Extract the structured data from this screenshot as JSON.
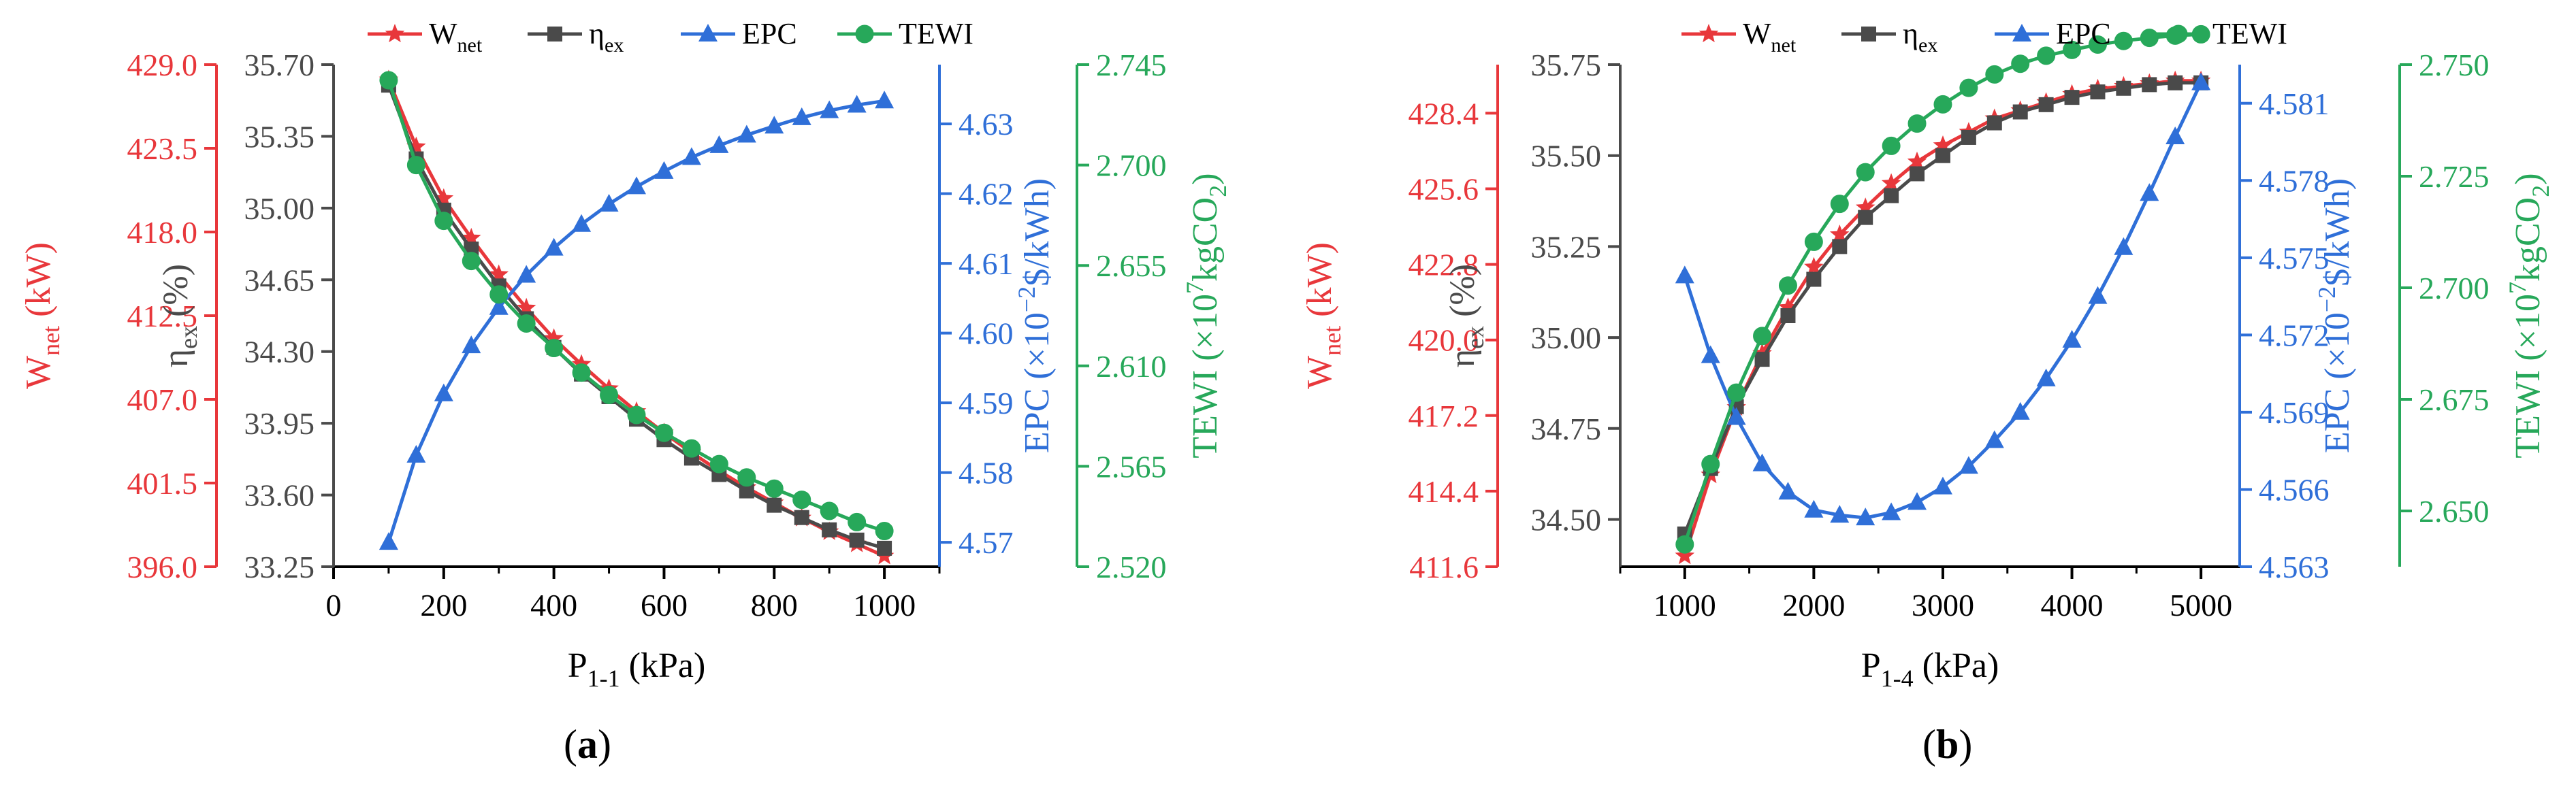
{
  "colors": {
    "wnet": "#e8373b",
    "eta": "#4a4a4a",
    "epc": "#2f6fd8",
    "tewi": "#27a85a",
    "axis": "#000000"
  },
  "panels": [
    {
      "label_open": "(",
      "label_letter": "a",
      "label_close": ")"
    },
    {
      "label_open": "(",
      "label_letter": "b",
      "label_close": ")"
    }
  ],
  "chart_data": [
    {
      "type": "line",
      "x": [
        100,
        150,
        200,
        250,
        300,
        350,
        400,
        450,
        500,
        550,
        600,
        650,
        700,
        750,
        800,
        850,
        900,
        950,
        1000
      ],
      "xlim": [
        0,
        1100
      ],
      "x_ticks": [
        "0",
        "200",
        "400",
        "600",
        "800",
        "1000"
      ],
      "xlabel_main": "P",
      "xlabel_sub": "1-1",
      "xlabel_tail": " (kPa)",
      "legend": [
        "W",
        "η",
        "EPC",
        "TEWI"
      ],
      "legend_subs": [
        "net",
        "ex",
        "",
        ""
      ],
      "axes": [
        {
          "key": "wnet",
          "label_main": "W",
          "label_sub": "net",
          "label_tail": " (kW)",
          "ticks": [
            "396.0",
            "401.5",
            "407.0",
            "412.5",
            "418.0",
            "423.5",
            "429.0"
          ],
          "ylim": [
            396.0,
            429.0
          ]
        },
        {
          "key": "eta",
          "label_main": "η",
          "label_sub": "ex",
          "label_tail": " (%)",
          "ticks": [
            "33.25",
            "33.60",
            "33.95",
            "34.30",
            "34.65",
            "35.00",
            "35.35",
            "35.70"
          ],
          "ylim": [
            33.25,
            35.7
          ]
        },
        {
          "key": "epc",
          "label_main": "EPC (×10",
          "label_sup": "−2",
          "label_tail": "$/kWh)",
          "ticks": [
            "4.57",
            "4.58",
            "4.59",
            "4.60",
            "4.61",
            "4.62",
            "4.63"
          ],
          "ylim": [
            4.5665,
            4.6385
          ]
        },
        {
          "key": "tewi",
          "label_main": "TEWI (×10",
          "label_sup": "7",
          "label_mid": "kgCO",
          "label_sub2": "2",
          "label_tail": ")",
          "ticks": [
            "2.520",
            "2.565",
            "2.610",
            "2.655",
            "2.700",
            "2.745"
          ],
          "ylim": [
            2.52,
            2.745
          ]
        }
      ],
      "series": [
        {
          "name": "Wnet",
          "axis": "wnet",
          "marker": "star",
          "values": [
            428.0,
            423.6,
            420.2,
            417.6,
            415.2,
            413.0,
            411.0,
            409.3,
            407.7,
            406.2,
            404.8,
            403.5,
            402.3,
            401.2,
            400.2,
            399.2,
            398.3,
            397.5,
            396.7
          ]
        },
        {
          "name": "ηex",
          "axis": "eta",
          "marker": "square",
          "values": [
            35.6,
            35.24,
            34.99,
            34.8,
            34.62,
            34.46,
            34.32,
            34.19,
            34.08,
            33.97,
            33.87,
            33.78,
            33.7,
            33.62,
            33.55,
            33.49,
            33.43,
            33.38,
            33.34
          ]
        },
        {
          "name": "EPC",
          "axis": "epc",
          "marker": "triangle",
          "values": [
            4.57,
            4.5825,
            4.5913,
            4.5982,
            4.6037,
            4.6083,
            4.6122,
            4.6156,
            4.6185,
            4.621,
            4.6232,
            4.6252,
            4.6269,
            4.6284,
            4.6297,
            4.6309,
            4.6319,
            4.6327,
            4.6333
          ]
        },
        {
          "name": "TEWI",
          "axis": "tewi",
          "marker": "circle",
          "values": [
            2.738,
            2.7,
            2.675,
            2.657,
            2.642,
            2.629,
            2.618,
            2.607,
            2.597,
            2.588,
            2.58,
            2.573,
            2.566,
            2.56,
            2.555,
            2.55,
            2.545,
            2.54,
            2.536
          ]
        }
      ]
    },
    {
      "type": "line",
      "x": [
        1000,
        1200,
        1400,
        1600,
        1800,
        2000,
        2200,
        2400,
        2600,
        2800,
        3000,
        3200,
        3400,
        3600,
        3800,
        4000,
        4200,
        4400,
        4600,
        4800,
        5000
      ],
      "xlim": [
        500,
        5300
      ],
      "x_ticks": [
        "1000",
        "2000",
        "3000",
        "4000",
        "5000"
      ],
      "xlabel_main": "P",
      "xlabel_sub": "1-4",
      "xlabel_tail": " (kPa)",
      "legend": [
        "W",
        "η",
        "EPC",
        "TEWI"
      ],
      "legend_subs": [
        "net",
        "ex",
        "",
        ""
      ],
      "axes": [
        {
          "key": "wnet",
          "label_main": "W",
          "label_sub": "net",
          "label_tail": " (kW)",
          "ticks": [
            "411.6",
            "414.4",
            "417.2",
            "420.0",
            "422.8",
            "425.6",
            "428.4"
          ],
          "ylim": [
            411.6,
            430.2
          ]
        },
        {
          "key": "eta",
          "label_main": "η",
          "label_sub": "ex",
          "label_tail": " (%)",
          "ticks": [
            "34.50",
            "34.75",
            "35.00",
            "35.25",
            "35.50",
            "35.75"
          ],
          "ylim": [
            34.37,
            35.75
          ]
        },
        {
          "key": "epc",
          "label_main": "EPC (×10",
          "label_sup": "−2",
          "label_tail": "$/kWh)",
          "ticks": [
            "4.563",
            "4.566",
            "4.569",
            "4.572",
            "4.575",
            "4.578",
            "4.581"
          ],
          "ylim": [
            4.563,
            4.5825
          ]
        },
        {
          "key": "tewi",
          "label_main": "TEWI (×10",
          "label_sup": "7",
          "label_mid": "kgCO",
          "label_sub2": "2",
          "label_tail": ")",
          "ticks": [
            "2.650",
            "2.675",
            "2.700",
            "2.725",
            "2.750"
          ],
          "ylim": [
            2.6375,
            2.75
          ]
        }
      ],
      "series": [
        {
          "name": "Wnet",
          "axis": "wnet",
          "marker": "star",
          "values": [
            412.0,
            415.0,
            417.5,
            419.5,
            421.2,
            422.7,
            423.9,
            424.9,
            425.8,
            426.6,
            427.2,
            427.7,
            428.2,
            428.5,
            428.8,
            429.1,
            429.3,
            429.4,
            429.5,
            429.6,
            429.6
          ]
        },
        {
          "name": "ηex",
          "axis": "eta",
          "marker": "square",
          "values": [
            34.46,
            34.64,
            34.81,
            34.94,
            35.06,
            35.16,
            35.25,
            35.33,
            35.39,
            35.45,
            35.5,
            35.55,
            35.59,
            35.62,
            35.64,
            35.66,
            35.675,
            35.685,
            35.695,
            35.7,
            35.7
          ]
        },
        {
          "name": "EPC",
          "axis": "epc",
          "marker": "triangle",
          "values": [
            4.5743,
            4.5712,
            4.5688,
            4.567,
            4.5659,
            4.5652,
            4.565,
            4.5649,
            4.5651,
            4.5655,
            4.5661,
            4.5669,
            4.5679,
            4.569,
            4.5703,
            4.5718,
            4.5735,
            4.5754,
            4.5775,
            4.5797,
            4.5818
          ]
        },
        {
          "name": "TEWI",
          "axis": "tewi",
          "marker": "circle",
          "values": [
            2.6425,
            2.6605,
            2.6765,
            2.6892,
            2.7005,
            2.7103,
            2.7188,
            2.7259,
            2.7318,
            2.7368,
            2.7411,
            2.7448,
            2.7478,
            2.7502,
            2.752,
            2.7533,
            2.7545,
            2.7553,
            2.756,
            2.7565,
            2.7568
          ]
        }
      ]
    }
  ]
}
